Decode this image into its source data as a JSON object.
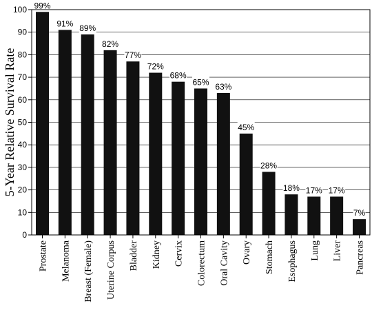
{
  "chart_data": {
    "type": "bar",
    "title": "",
    "xlabel": "",
    "ylabel": "5-Year Relative Survival Rate",
    "ylim": [
      0,
      100
    ],
    "yticks": [
      0,
      10,
      20,
      30,
      40,
      50,
      60,
      70,
      80,
      90,
      100
    ],
    "grid": true,
    "legend": "none",
    "bar_color": "#111111",
    "categories": [
      "Prostate",
      "Melanoma",
      "Breast (Female)",
      "Uterine Corpus",
      "Bladder",
      "Kidney",
      "Cervix",
      "Colorectum",
      "Oral Cavity",
      "Ovary",
      "Stomach",
      "Esophagus",
      "Lung",
      "Liver",
      "Pancreas"
    ],
    "values": [
      99,
      91,
      89,
      82,
      77,
      72,
      68,
      65,
      63,
      45,
      28,
      18,
      17,
      17,
      7
    ],
    "data_labels": [
      "99%",
      "91%",
      "89%",
      "82%",
      "77%",
      "72%",
      "68%",
      "65%",
      "63%",
      "45%",
      "28%",
      "18%",
      "17%",
      "17%",
      "7%"
    ]
  }
}
